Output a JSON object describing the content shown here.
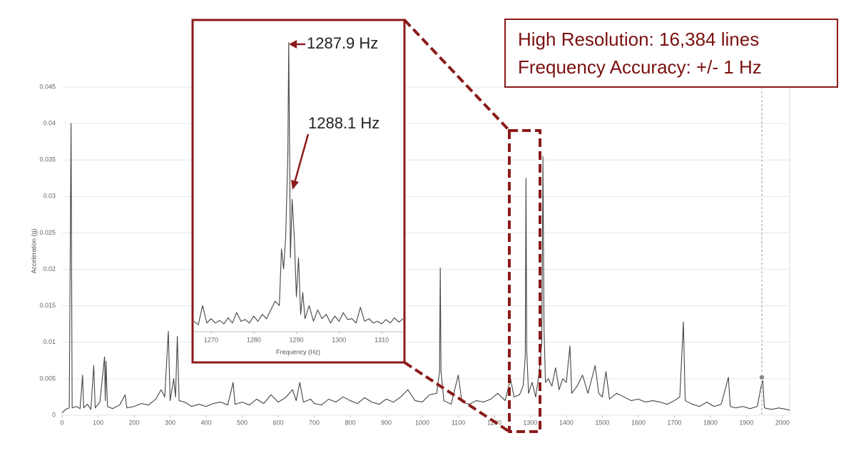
{
  "chart_data": [
    {
      "type": "line",
      "ylabel": "Acceleration (g)",
      "color": "#444444",
      "grid": true,
      "annotations": [
        "High Resolution: 16,384 lines",
        "Frequency Accuracy: +/- 1 Hz"
      ],
      "xlim": [
        0,
        2020
      ],
      "ylim": [
        0,
        0.045
      ],
      "xticks": [
        0,
        100,
        200,
        300,
        400,
        500,
        600,
        700,
        800,
        900,
        1000,
        1100,
        1200,
        1300,
        1400,
        1500,
        1600,
        1700,
        1800,
        1900,
        2000
      ],
      "yticks": [
        0,
        0.005,
        0.01,
        0.015,
        0.02,
        0.025,
        0.03,
        0.035,
        0.04,
        0.045
      ],
      "x": [
        0,
        10,
        20,
        25,
        28,
        40,
        50,
        57,
        60,
        70,
        80,
        88,
        92,
        105,
        118,
        120,
        122,
        126,
        140,
        160,
        175,
        180,
        200,
        220,
        240,
        260,
        275,
        285,
        295,
        300,
        310,
        315,
        320,
        325,
        340,
        360,
        380,
        400,
        420,
        440,
        460,
        475,
        480,
        500,
        520,
        540,
        560,
        580,
        600,
        620,
        640,
        650,
        660,
        670,
        690,
        700,
        720,
        740,
        760,
        780,
        800,
        820,
        840,
        860,
        880,
        900,
        920,
        940,
        960,
        980,
        1000,
        1020,
        1040,
        1048,
        1050,
        1052,
        1060,
        1080,
        1100,
        1110,
        1130,
        1150,
        1170,
        1190,
        1210,
        1230,
        1245,
        1255,
        1270,
        1280,
        1286,
        1288,
        1290,
        1295,
        1305,
        1315,
        1325,
        1332,
        1335,
        1338,
        1342,
        1350,
        1360,
        1370,
        1380,
        1390,
        1400,
        1410,
        1415,
        1430,
        1445,
        1460,
        1480,
        1490,
        1500,
        1510,
        1520,
        1540,
        1560,
        1580,
        1600,
        1620,
        1640,
        1660,
        1680,
        1700,
        1715,
        1725,
        1730,
        1750,
        1770,
        1790,
        1810,
        1830,
        1850,
        1855,
        1870,
        1890,
        1910,
        1930,
        1945,
        1950,
        1970,
        1990,
        2010,
        2020
      ],
      "values": [
        0.0003,
        0.0008,
        0.001,
        0.04,
        0.001,
        0.0012,
        0.0009,
        0.0055,
        0.001,
        0.0015,
        0.0008,
        0.0068,
        0.001,
        0.0018,
        0.008,
        0.002,
        0.0074,
        0.0012,
        0.0009,
        0.0014,
        0.0028,
        0.001,
        0.0012,
        0.0016,
        0.0014,
        0.0022,
        0.0035,
        0.0025,
        0.0115,
        0.002,
        0.005,
        0.0025,
        0.0108,
        0.002,
        0.0018,
        0.0012,
        0.0015,
        0.0012,
        0.0016,
        0.0018,
        0.0014,
        0.0045,
        0.0015,
        0.0018,
        0.0014,
        0.0022,
        0.0016,
        0.0028,
        0.0018,
        0.0024,
        0.0035,
        0.002,
        0.0045,
        0.0018,
        0.0022,
        0.0016,
        0.0014,
        0.0022,
        0.0018,
        0.0025,
        0.002,
        0.0016,
        0.0024,
        0.0018,
        0.0015,
        0.0022,
        0.0018,
        0.0025,
        0.0035,
        0.002,
        0.0018,
        0.0028,
        0.003,
        0.006,
        0.0202,
        0.006,
        0.002,
        0.0015,
        0.0055,
        0.0018,
        0.0015,
        0.002,
        0.0018,
        0.0022,
        0.003,
        0.002,
        0.005,
        0.0025,
        0.0028,
        0.004,
        0.008,
        0.0325,
        0.009,
        0.003,
        0.0045,
        0.0025,
        0.006,
        0.01,
        0.0355,
        0.012,
        0.0045,
        0.005,
        0.004,
        0.0065,
        0.0035,
        0.005,
        0.0045,
        0.0095,
        0.003,
        0.004,
        0.0055,
        0.003,
        0.0068,
        0.003,
        0.0025,
        0.006,
        0.0022,
        0.003,
        0.0025,
        0.002,
        0.0022,
        0.0018,
        0.002,
        0.0018,
        0.0015,
        0.002,
        0.0025,
        0.0128,
        0.002,
        0.0015,
        0.0012,
        0.0018,
        0.0012,
        0.0015,
        0.0052,
        0.0012,
        0.001,
        0.0012,
        0.0009,
        0.0012,
        0.005,
        0.001,
        0.0008,
        0.001,
        0.0008,
        0.0007
      ]
    },
    {
      "type": "line",
      "xlabel": "Frequency (Hz)",
      "color": "#444444",
      "annotations": [
        "1287.9 Hz",
        "1288.1 Hz"
      ],
      "xlim": [
        1266,
        1315
      ],
      "ylim": [
        0,
        0.034
      ],
      "xticks": [
        1270,
        1280,
        1290,
        1300,
        1310
      ],
      "x": [
        1266,
        1267,
        1268,
        1269,
        1270,
        1271,
        1272,
        1273,
        1274,
        1275,
        1276,
        1277,
        1278,
        1279,
        1280,
        1281,
        1282,
        1283,
        1284,
        1285,
        1286,
        1286.5,
        1287,
        1287.5,
        1288,
        1288.2,
        1288.6,
        1289,
        1289.5,
        1290,
        1290.5,
        1291,
        1291.5,
        1292,
        1293,
        1294,
        1295,
        1296,
        1297,
        1298,
        1299,
        1300,
        1301,
        1302,
        1303,
        1304,
        1305,
        1306,
        1307,
        1308,
        1309,
        1310,
        1311,
        1312,
        1313,
        1314,
        1315
      ],
      "values": [
        0.0012,
        0.0008,
        0.003,
        0.001,
        0.0015,
        0.001,
        0.0013,
        0.0009,
        0.0016,
        0.001,
        0.0022,
        0.0012,
        0.0014,
        0.001,
        0.0018,
        0.0012,
        0.002,
        0.0015,
        0.0025,
        0.0035,
        0.003,
        0.0095,
        0.0072,
        0.011,
        0.0205,
        0.0332,
        0.0085,
        0.0152,
        0.011,
        0.004,
        0.0085,
        0.002,
        0.0045,
        0.0015,
        0.003,
        0.0012,
        0.0025,
        0.0015,
        0.002,
        0.001,
        0.0018,
        0.0012,
        0.0022,
        0.0014,
        0.0015,
        0.001,
        0.0028,
        0.0012,
        0.0015,
        0.001,
        0.0012,
        0.0009,
        0.0014,
        0.001,
        0.0016,
        0.0011,
        0.0015
      ]
    }
  ]
}
